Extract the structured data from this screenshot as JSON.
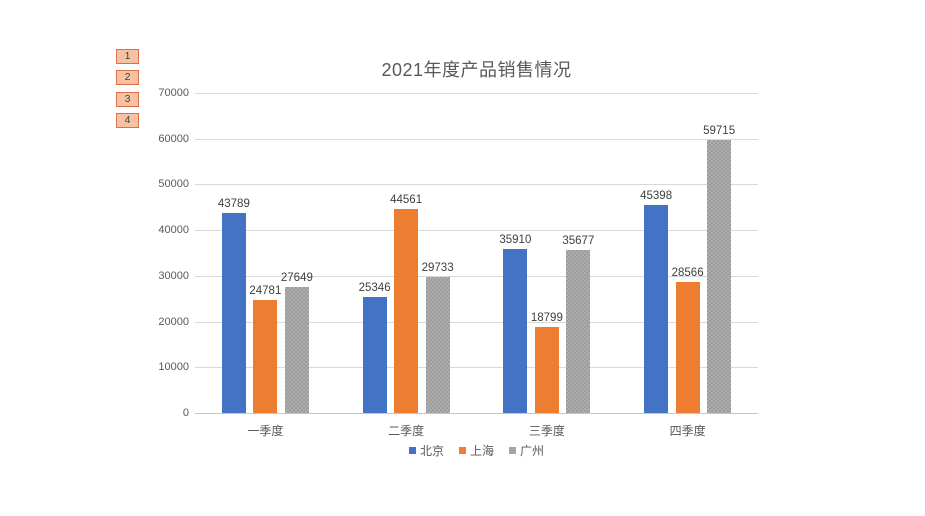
{
  "outline_buttons": [
    "1",
    "2",
    "3",
    "4"
  ],
  "outline_button_style": {
    "fill": "#F7C2A2",
    "border": "#DE6F4C"
  },
  "chart_data": {
    "type": "bar",
    "title": "2021年度产品销售情况",
    "categories": [
      "一季度",
      "二季度",
      "三季度",
      "四季度"
    ],
    "series": [
      {
        "name": "北京",
        "color": "#4472C4",
        "values": [
          43789,
          25346,
          35910,
          45398
        ]
      },
      {
        "name": "上海",
        "color": "#ED7D31",
        "values": [
          24781,
          44561,
          18799,
          28566
        ]
      },
      {
        "name": "广州",
        "color": "#A5A5A5",
        "values": [
          27649,
          29733,
          35677,
          59715
        ]
      }
    ],
    "ylim": [
      0,
      70000
    ],
    "yticks": [
      0,
      10000,
      20000,
      30000,
      40000,
      50000,
      60000,
      70000
    ],
    "grid": true,
    "data_labels": true,
    "legend_position": "bottom"
  }
}
